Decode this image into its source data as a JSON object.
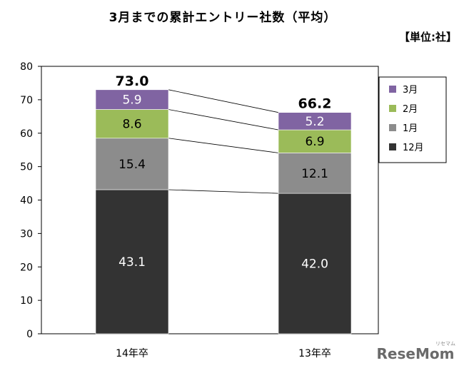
{
  "title": "3月までの累計エントリー社数（平均）",
  "unit": "【単位:社】",
  "watermark": "ReseMom",
  "watermark_sub": "リセマム",
  "chart_data": {
    "type": "bar",
    "stacked": true,
    "categories": [
      "14年卒",
      "13年卒"
    ],
    "series": [
      {
        "name": "12月",
        "values": [
          43.1,
          42.0
        ],
        "color": "#333333",
        "label_color": "#ffffff"
      },
      {
        "name": "1月",
        "values": [
          15.4,
          12.1
        ],
        "color": "#8c8c8c",
        "label_color": "#000000"
      },
      {
        "name": "2月",
        "values": [
          8.6,
          6.9
        ],
        "color": "#9bbb59",
        "label_color": "#000000"
      },
      {
        "name": "3月",
        "values": [
          5.9,
          5.2
        ],
        "color": "#8064a2",
        "label_color": "#ffffff"
      }
    ],
    "totals": [
      73.0,
      66.2
    ],
    "y_ticks": [
      0,
      10,
      20,
      30,
      40,
      50,
      60,
      70,
      80
    ],
    "ylim": [
      0,
      80
    ],
    "legend_order": [
      "3月",
      "2月",
      "1月",
      "12月"
    ],
    "legend_position": "top-right",
    "grid": false,
    "connector_lines": true
  }
}
